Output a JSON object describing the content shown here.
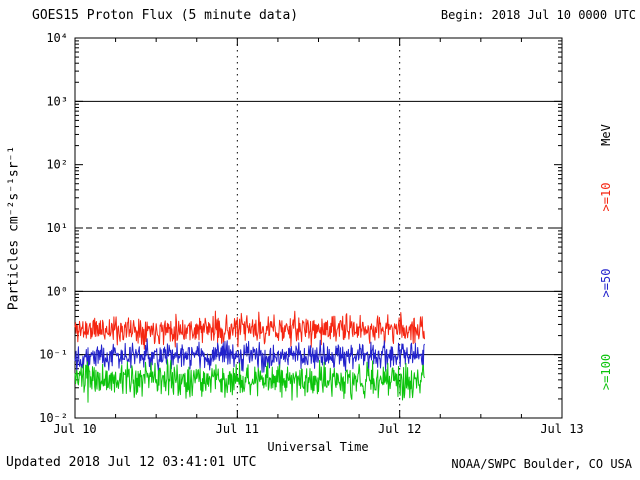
{
  "header": {
    "title": "GOES15 Proton Flux (5 minute data)",
    "begin_label": "Begin: 2018 Jul 10 0000 UTC"
  },
  "footer": {
    "updated": "Updated 2018 Jul 12 03:41:01 UTC",
    "credit": "NOAA/SWPC Boulder, CO USA"
  },
  "chart_data": {
    "type": "line",
    "title": "GOES15 Proton Flux (5 minute data)",
    "xlabel": "Universal Time",
    "ylabel": "Particles  cm⁻²s⁻¹sr⁻¹",
    "y_scale": "log10",
    "y_log_range": [
      -2,
      4
    ],
    "y_tick_labels": [
      "10⁴",
      "10³",
      "10²",
      "10¹",
      "10⁰",
      "10⁻¹",
      "10⁻²"
    ],
    "x_range_days": 3,
    "x_tick_labels": [
      "Jul 10",
      "Jul 11",
      "Jul 12",
      "Jul 13"
    ],
    "cadence_minutes": 5,
    "grid": {
      "solid_hlines_log": [
        3,
        0,
        -1
      ],
      "dashed_hlines_log": [
        1
      ],
      "dotted_vlines_days": [
        1,
        2
      ]
    },
    "right_axis_unit": "MeV",
    "right_axis_unit_color": "#000000",
    "axis_color": "#000000",
    "background_color": "#ffffff",
    "legend_position": "right-vertical",
    "series": [
      {
        "name": ">=10",
        "color": "#f52511",
        "approx_mean_flux": 0.25,
        "approx_min_flux": 0.13,
        "approx_max_flux": 0.55,
        "log_mean": -0.6,
        "log_spread": 0.22,
        "seed": 11,
        "end_day": 2.1535
      },
      {
        "name": ">=50",
        "color": "#2222cc",
        "approx_mean_flux": 0.095,
        "approx_min_flux": 0.05,
        "approx_max_flux": 0.18,
        "log_mean": -1.02,
        "log_spread": 0.2,
        "seed": 22,
        "end_day": 2.1535
      },
      {
        "name": ">=100",
        "color": "#0cc40c",
        "approx_mean_flux": 0.04,
        "approx_min_flux": 0.016,
        "approx_max_flux": 0.095,
        "log_mean": -1.4,
        "log_spread": 0.26,
        "seed": 33,
        "end_day": 2.1535
      }
    ]
  }
}
